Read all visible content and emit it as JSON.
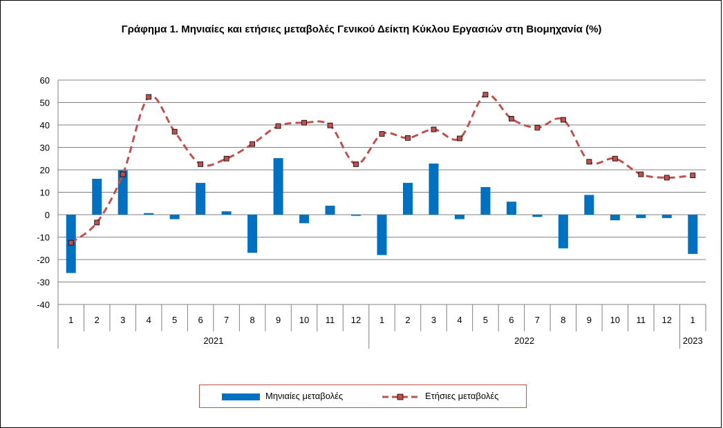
{
  "title": "Γράφημα 1. Μηνιαίες και ετήσιες μεταβολές  Γενικού Δείκτη Κύκλου Εργασιών στη Βιομηχανία (%)",
  "chart_data": {
    "type": "bar",
    "title": "Γράφημα 1. Μηνιαίες και ετήσιες μεταβολές  Γενικού Δείκτη Κύκλου Εργασιών στη Βιομηχανία (%)",
    "categories": [
      "1",
      "2",
      "3",
      "4",
      "5",
      "6",
      "7",
      "8",
      "9",
      "10",
      "11",
      "12",
      "1",
      "2",
      "3",
      "4",
      "5",
      "6",
      "7",
      "8",
      "9",
      "10",
      "11",
      "12",
      "1"
    ],
    "groups": [
      {
        "label": "2021",
        "count": 12
      },
      {
        "label": "2022",
        "count": 12
      },
      {
        "label": "2023",
        "count": 1
      }
    ],
    "yticks": [
      -40,
      -30,
      -20,
      -10,
      0,
      10,
      20,
      30,
      40,
      50,
      60
    ],
    "ylim": [
      -40,
      60
    ],
    "grid": true,
    "legend_position": "bottom",
    "series": [
      {
        "name": "Μηνιαίες μεταβολές",
        "kind": "bar",
        "color": "#0070c0",
        "values": [
          -26.0,
          16.0,
          19.8,
          0.7,
          -2.0,
          14.2,
          1.5,
          -17.0,
          25.2,
          -3.8,
          4.0,
          -0.5,
          -18.0,
          14.2,
          22.8,
          -2.0,
          12.3,
          5.8,
          -1.0,
          -15.0,
          8.8,
          -2.5,
          -1.5,
          -1.5,
          -17.5
        ]
      },
      {
        "name": "Ετήσιες μεταβολές",
        "kind": "line",
        "color": "#c0504d",
        "values": [
          -12.5,
          -3.5,
          18.0,
          52.5,
          37.0,
          22.5,
          25.0,
          31.5,
          39.5,
          41.0,
          39.8,
          22.5,
          36.0,
          34.2,
          38.0,
          34.0,
          53.5,
          42.8,
          38.8,
          42.3,
          23.6,
          25.0,
          18.0,
          16.5,
          17.5
        ]
      }
    ]
  },
  "legend": {
    "monthly_label": "Μηνιαίες μεταβολές",
    "annual_label": "Ετήσιες μεταβολές"
  }
}
